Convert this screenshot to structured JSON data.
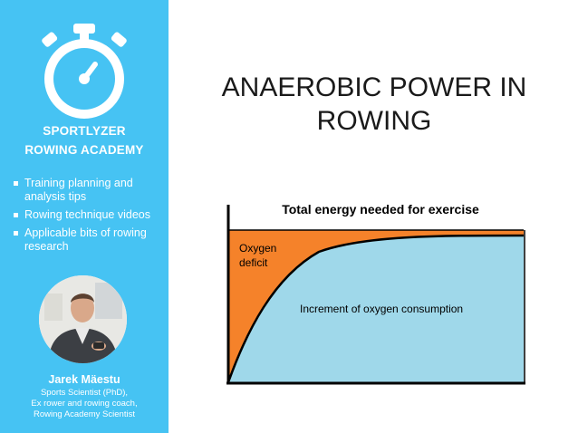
{
  "sidebar": {
    "brand_line1": "SPORTLYZER",
    "brand_line2": "ROWING ACADEMY",
    "bullets": [
      "Training planning and analysis tips",
      "Rowing technique videos",
      "Applicable bits of rowing research"
    ],
    "author": {
      "name": "Jarek Mäestu",
      "role_lines": [
        "Sports Scientist (PhD),",
        "Ex rower and rowing coach,",
        "Rowing Academy Scientist"
      ]
    },
    "logo_icon": "stopwatch-icon",
    "background_color": "#46c3f3"
  },
  "slide": {
    "title_line1": "ANAEROBIC POWER IN",
    "title_line2": "ROWING"
  },
  "figure": {
    "title": "Total energy needed for exercise",
    "deficit_label_line1": "Oxygen",
    "deficit_label_line2": "deficit",
    "consumption_label": "Increment of oxygen consumption",
    "colors": {
      "deficit": "#f5822a",
      "consumption": "#9fd8ea"
    }
  }
}
